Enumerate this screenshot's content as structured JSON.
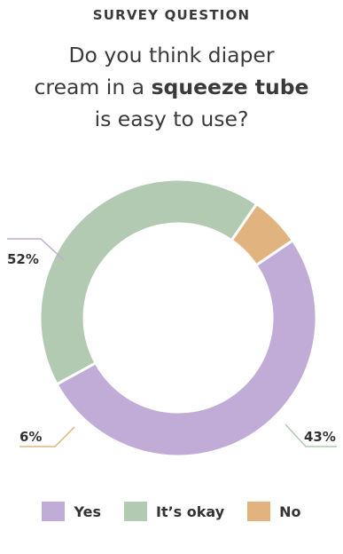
{
  "header": {
    "eyebrow": "SURVEY QUESTION",
    "line1": "Do you think diaper",
    "line2_pre": "cream in a ",
    "line2_bold": "squeeze tube",
    "line3": "is easy to use?"
  },
  "chart_data": {
    "type": "pie",
    "variant": "donut",
    "categories": [
      "Yes",
      "It’s okay",
      "No"
    ],
    "values": [
      52,
      43,
      6
    ],
    "labels": [
      "52%",
      "43%",
      "6%"
    ],
    "colors": [
      "#c0acd6",
      "#b2cab2",
      "#e1b47f"
    ],
    "legend_position": "bottom"
  }
}
